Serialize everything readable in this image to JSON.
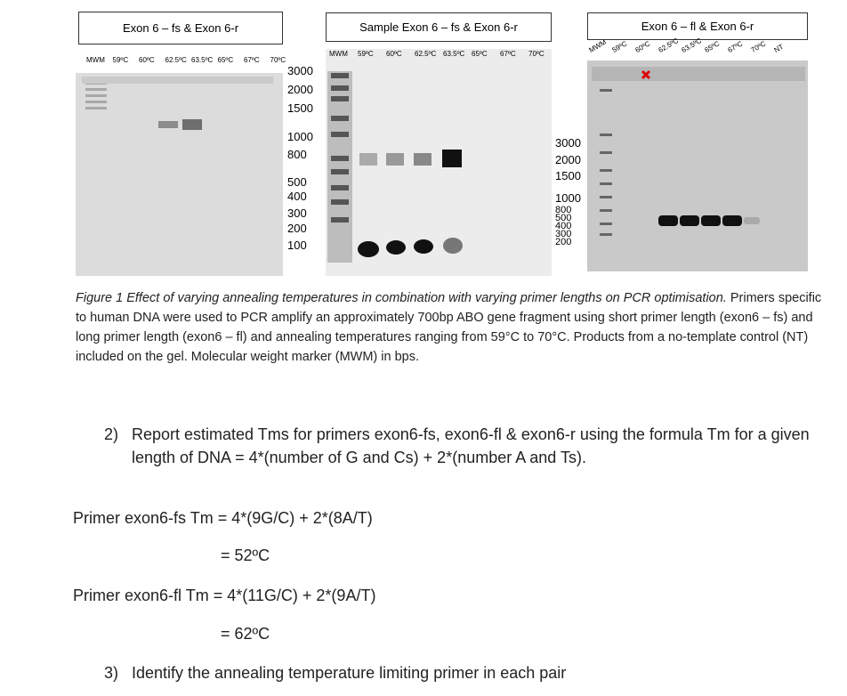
{
  "figure": {
    "panels": [
      {
        "title": "Exon 6 – fs & Exon 6-r",
        "lanes": [
          "MWM",
          "59ºC",
          "60ºC",
          "62.5ºC",
          "63.5ºC",
          "65ºC",
          "67ºC",
          "70ºC"
        ]
      },
      {
        "title": "Sample Exon 6 – fs & Exon 6-r",
        "lanes": [
          "MWM",
          "59ºC",
          "60ºC",
          "62.5ºC",
          "63.5ºC",
          "65ºC",
          "67ºC",
          "70ºC"
        ]
      },
      {
        "title": "Exon 6 – fl & Exon 6-r",
        "lanes": [
          "MWM",
          "59ºC",
          "60ºC",
          "62.5ºC",
          "63.5ºC",
          "65ºC",
          "67ºC",
          "70ºC",
          "NT"
        ]
      }
    ],
    "ladders": [
      [
        "3000",
        "2000",
        "1500",
        "1000",
        "800",
        "500",
        "400",
        "300",
        "200",
        "100"
      ],
      [
        "3000",
        "2000",
        "1500",
        "1000",
        "800",
        "500",
        "400",
        "300",
        "200"
      ]
    ],
    "caption": {
      "label": "Figure 1",
      "heading": "Effect of varying annealing temperatures in combination with varying primer lengths on PCR optimisation.",
      "text": "Primers specific to human DNA were used to PCR amplify an approximately 700bp ABO gene fragment using short primer length (exon6 – fs) and long primer length (exon6 – fl) and annealing temperatures ranging from 59°C to 70°C. Products from a no-template control (NT) included on the gel. Molecular weight marker (MWM) in bps."
    }
  },
  "questions": [
    {
      "number": "2)",
      "text": "Report estimated Tms for primers exon6-fs, exon6-fl & exon6-r using the formula Tm for a given length of DNA = 4*(number of G and Cs) + 2*(number A and Ts)."
    },
    {
      "number": "3)",
      "text": "Identify the annealing temperature limiting primer in each pair"
    }
  ],
  "answers": [
    "Primer exon6-fs Tm = 4*(9G/C) + 2*(8A/T)",
    "= 52ºC",
    "Primer exon6-fl Tm = 4*(11G/C) + 2*(9A/T)",
    "= 62ºC"
  ]
}
